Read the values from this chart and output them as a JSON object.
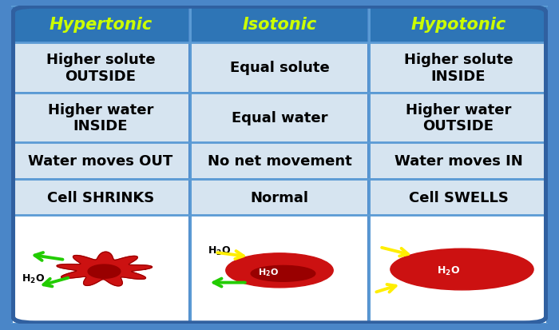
{
  "bg_color": "#5b9bd5",
  "header_bg": "#2e75b6",
  "header_text_color": "#ccff00",
  "cell_bg": "#d6e4f0",
  "grid_line_color": "#5b9bd5",
  "headers": [
    "Hypertonic",
    "Isotonic",
    "Hypotonic"
  ],
  "rows": [
    [
      "Higher solute\nOUTSIDE",
      "Equal solute",
      "Higher solute\nINSIDE"
    ],
    [
      "Higher water\nINSIDE",
      "Equal water",
      "Higher water\nOUTSIDE"
    ],
    [
      "Water moves OUT",
      "No net movement",
      "Water moves IN"
    ],
    [
      "Cell SHRINKS",
      "Normal",
      "Cell SWELLS"
    ]
  ],
  "header_fontsize": 15,
  "cell_fontsize": 13,
  "fig_width": 7.0,
  "fig_height": 4.14,
  "dpi": 100,
  "outer_bg": "#4a86c8",
  "white_cell_bg": "#ffffff"
}
